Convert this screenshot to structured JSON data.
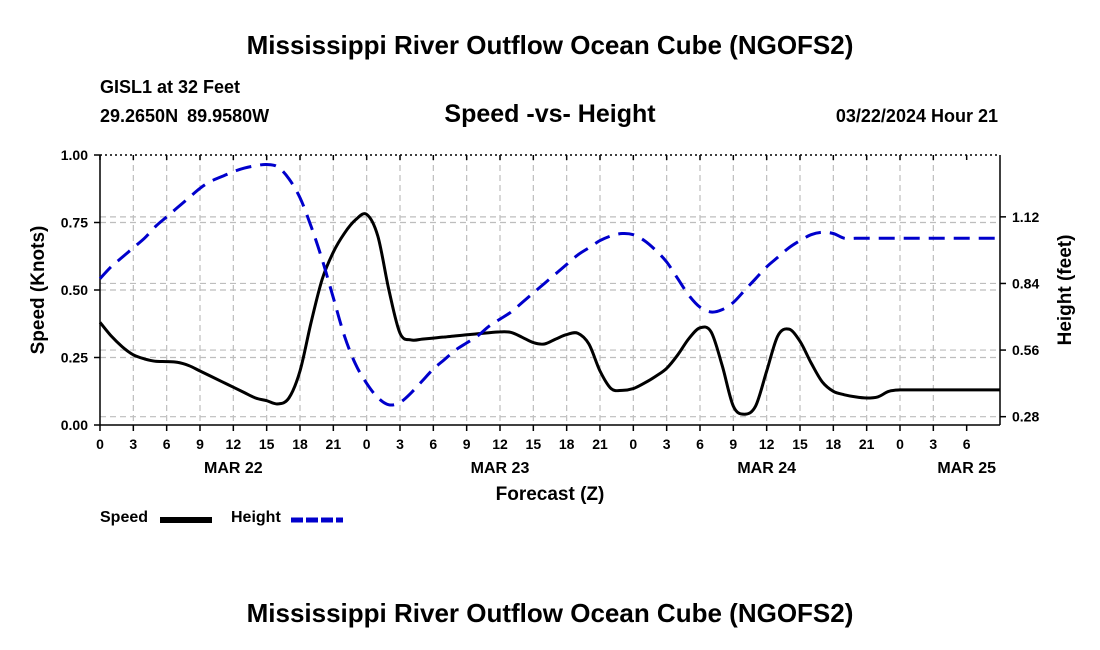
{
  "header": {
    "title": "Mississippi River Outflow Ocean Cube (NGOFS2)",
    "station_id": "GISL1 at 32 Feet",
    "station_coords": "29.2650N  89.9580W",
    "timestamp": "03/22/2024 Hour 21"
  },
  "footer": {
    "title": "Mississippi River Outflow Ocean Cube (NGOFS2)"
  },
  "chart_data": {
    "type": "line",
    "title": "Speed -vs- Height",
    "xlabel": "Forecast (Z)",
    "ylabel_left": "Speed (Knots)",
    "ylabel_right": "Height (feet)",
    "x_hours_range": [
      0,
      81
    ],
    "x_hour_step": 3,
    "x_tick_labels": [
      "0",
      "3",
      "6",
      "9",
      "12",
      "15",
      "18",
      "21",
      "0",
      "3",
      "6",
      "9",
      "12",
      "15",
      "18",
      "21",
      "0",
      "3",
      "6",
      "9",
      "12",
      "15",
      "18",
      "21",
      "0",
      "3",
      "6"
    ],
    "date_labels": [
      {
        "label": "MAR 22",
        "hour": 12
      },
      {
        "label": "MAR 23",
        "hour": 36
      },
      {
        "label": "MAR 24",
        "hour": 60
      },
      {
        "label": "MAR 25",
        "hour": 78
      }
    ],
    "y_left": {
      "range": [
        0,
        1.0
      ],
      "ticks": [
        "0.00",
        "0.25",
        "0.50",
        "0.75",
        "1.00"
      ],
      "tick_values": [
        0,
        0.25,
        0.5,
        0.75,
        1.0
      ]
    },
    "y_right": {
      "range": [
        0.245,
        1.38
      ],
      "ticks": [
        "0.28",
        "0.56",
        "0.84",
        "1.12"
      ],
      "tick_values": [
        0.28,
        0.56,
        0.84,
        1.12
      ]
    },
    "grid": true,
    "series": [
      {
        "name": "Speed",
        "axis": "left",
        "color": "#000000",
        "style": "solid",
        "x": [
          0,
          1,
          2,
          3,
          4,
          5,
          6,
          7,
          8,
          9,
          10,
          11,
          12,
          13,
          14,
          15,
          16,
          17,
          18,
          19,
          20,
          21,
          22,
          23,
          24,
          25,
          26,
          27,
          28,
          29,
          30,
          31,
          32,
          33,
          34,
          35,
          36,
          37,
          38,
          39,
          40,
          41,
          42,
          43,
          44,
          45,
          46,
          47,
          48,
          49,
          50,
          51,
          52,
          53,
          54,
          55,
          56,
          57,
          58,
          59,
          60,
          61,
          62,
          63,
          64,
          65,
          66,
          67,
          68,
          69,
          70,
          71,
          72,
          73,
          74,
          75,
          76,
          77,
          78,
          79,
          80,
          81
        ],
        "values": [
          0.38,
          0.33,
          0.29,
          0.26,
          0.245,
          0.236,
          0.235,
          0.232,
          0.22,
          0.2,
          0.18,
          0.16,
          0.14,
          0.12,
          0.1,
          0.09,
          0.078,
          0.1,
          0.2,
          0.38,
          0.54,
          0.64,
          0.71,
          0.76,
          0.78,
          0.7,
          0.5,
          0.34,
          0.315,
          0.318,
          0.322,
          0.326,
          0.33,
          0.334,
          0.338,
          0.342,
          0.345,
          0.343,
          0.325,
          0.305,
          0.3,
          0.318,
          0.335,
          0.34,
          0.3,
          0.2,
          0.135,
          0.128,
          0.135,
          0.155,
          0.18,
          0.21,
          0.26,
          0.32,
          0.36,
          0.345,
          0.22,
          0.07,
          0.04,
          0.07,
          0.2,
          0.33,
          0.355,
          0.31,
          0.23,
          0.16,
          0.125,
          0.112,
          0.104,
          0.1,
          0.104,
          0.125,
          0.13,
          0.13,
          0.13,
          0.13,
          0.13,
          0.13,
          0.13,
          0.13,
          0.13,
          0.13
        ]
      },
      {
        "name": "Height",
        "axis": "right",
        "color": "#0000cc",
        "style": "dashed",
        "x": [
          0,
          1,
          2,
          3,
          4,
          5,
          6,
          7,
          8,
          9,
          10,
          11,
          12,
          13,
          14,
          15,
          16,
          17,
          18,
          19,
          20,
          21,
          22,
          23,
          24,
          25,
          26,
          27,
          28,
          29,
          30,
          31,
          32,
          33,
          34,
          35,
          36,
          37,
          38,
          39,
          40,
          41,
          42,
          43,
          44,
          45,
          46,
          47,
          48,
          49,
          50,
          51,
          52,
          53,
          54,
          55,
          56,
          57,
          58,
          59,
          60,
          61,
          62,
          63,
          64,
          65,
          66,
          67,
          68,
          69,
          70,
          71,
          72,
          73,
          74,
          75,
          76,
          77,
          78,
          79,
          80,
          81
        ],
        "values": [
          0.86,
          0.91,
          0.95,
          0.99,
          1.03,
          1.08,
          1.12,
          1.16,
          1.2,
          1.24,
          1.27,
          1.29,
          1.31,
          1.325,
          1.335,
          1.34,
          1.33,
          1.28,
          1.2,
          1.08,
          0.94,
          0.78,
          0.62,
          0.5,
          0.42,
          0.36,
          0.33,
          0.34,
          0.38,
          0.43,
          0.48,
          0.52,
          0.56,
          0.59,
          0.62,
          0.66,
          0.69,
          0.72,
          0.76,
          0.8,
          0.84,
          0.88,
          0.92,
          0.96,
          0.99,
          1.02,
          1.04,
          1.05,
          1.045,
          1.02,
          0.98,
          0.93,
          0.86,
          0.79,
          0.74,
          0.72,
          0.73,
          0.76,
          0.81,
          0.86,
          0.91,
          0.95,
          0.99,
          1.02,
          1.045,
          1.055,
          1.05,
          1.03,
          1.03,
          1.03,
          1.03,
          1.03,
          1.03,
          1.03,
          1.03,
          1.03,
          1.03,
          1.03,
          1.03,
          1.03,
          1.03,
          1.03
        ]
      }
    ]
  },
  "legend": {
    "speed_label": "Speed",
    "height_label": "Height",
    "speed_color": "#000000",
    "height_color": "#0000cc"
  }
}
